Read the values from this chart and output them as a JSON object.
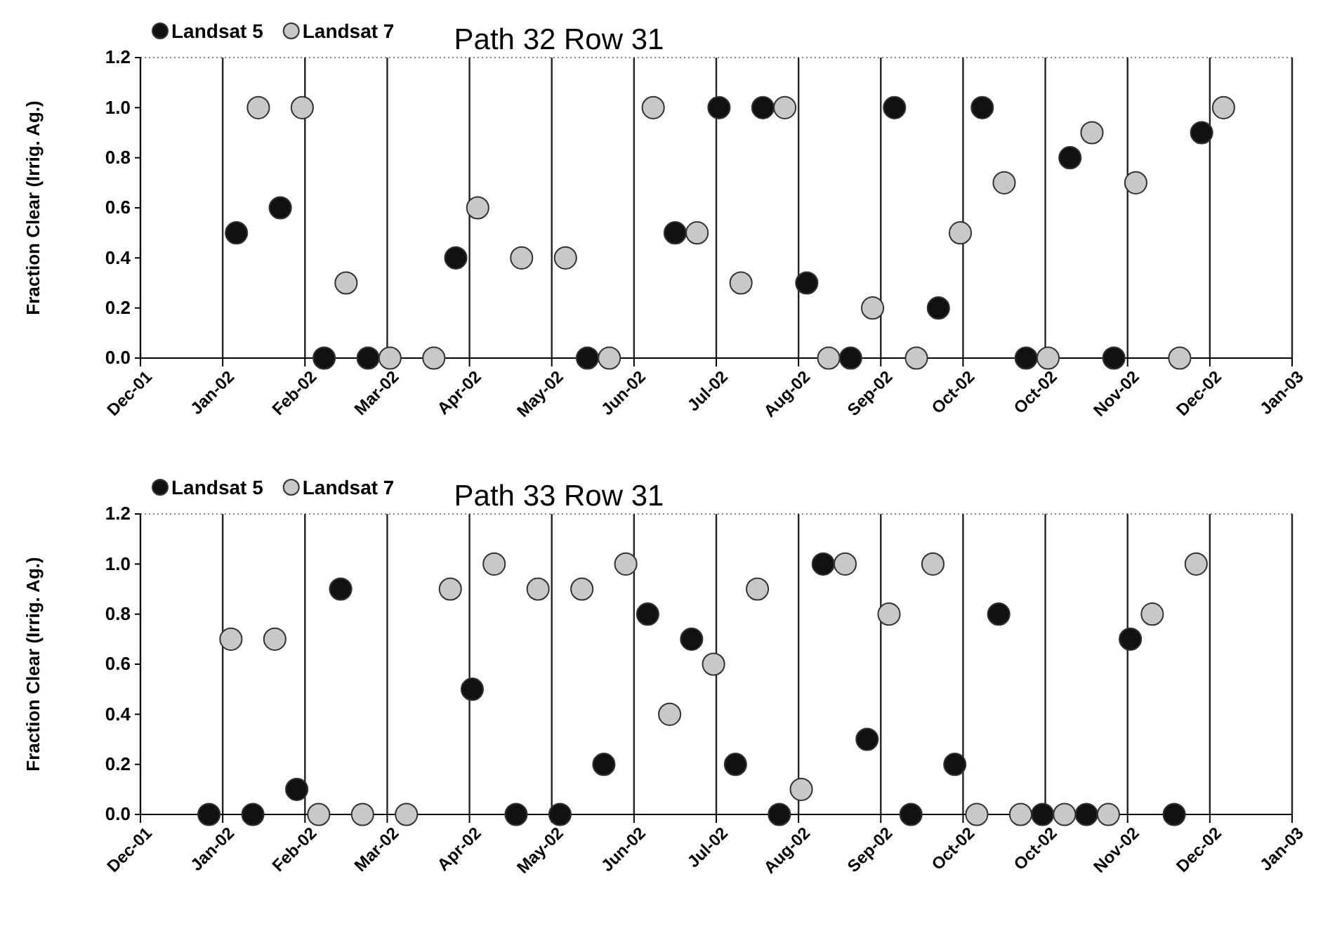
{
  "chart_data": [
    {
      "type": "scatter",
      "title": "Path 32 Row 31",
      "ylabel": "Fraction Clear (Irrig. Ag.)",
      "xlim": [
        "2001-12-05",
        "2003-01-29"
      ],
      "xticks": [
        {
          "value": "2001-12-05",
          "label": "Dec-01"
        },
        {
          "value": "2002-01-04",
          "label": "Jan-02"
        },
        {
          "value": "2002-02-03",
          "label": "Feb-02"
        },
        {
          "value": "2002-03-05",
          "label": "Mar-02"
        },
        {
          "value": "2002-04-04",
          "label": "Apr-02"
        },
        {
          "value": "2002-05-04",
          "label": "May-02"
        },
        {
          "value": "2002-06-03",
          "label": "Jun-02"
        },
        {
          "value": "2002-07-03",
          "label": "Jul-02"
        },
        {
          "value": "2002-08-02",
          "label": "Aug-02"
        },
        {
          "value": "2002-09-01",
          "label": "Sep-02"
        },
        {
          "value": "2002-10-01",
          "label": "Oct-02"
        },
        {
          "value": "2002-10-31",
          "label": "Oct-02"
        },
        {
          "value": "2002-11-30",
          "label": "Nov-02"
        },
        {
          "value": "2002-12-30",
          "label": "Dec-02"
        },
        {
          "value": "2003-01-29",
          "label": "Jan-03"
        }
      ],
      "ylim": [
        0,
        1.2
      ],
      "yticks": [
        {
          "value": 0,
          "label": "0.0"
        },
        {
          "value": 0.2,
          "label": "0.2"
        },
        {
          "value": 0.4,
          "label": "0.4"
        },
        {
          "value": 0.6,
          "label": "0.6"
        },
        {
          "value": 0.8,
          "label": "0.8"
        },
        {
          "value": 1,
          "label": "1.0"
        },
        {
          "value": 1.2,
          "label": "1.2"
        }
      ],
      "grid": "x",
      "legend": "top left",
      "marker": "circle",
      "series": [
        {
          "name": "Landsat 5",
          "color": "#111111",
          "x": [
            "2002-01-09",
            "2002-01-25",
            "2002-02-10",
            "2002-02-26",
            "2002-03-30",
            "2002-05-17",
            "2002-06-18",
            "2002-07-04",
            "2002-07-20",
            "2002-08-05",
            "2002-08-21",
            "2002-09-06",
            "2002-09-22",
            "2002-10-08",
            "2002-10-24",
            "2002-11-09",
            "2002-11-25",
            "2002-12-27"
          ],
          "values": [
            0.5,
            0.6,
            0,
            0,
            0.4,
            0,
            0.5,
            1,
            1,
            0.3,
            0,
            1,
            0.2,
            1,
            0,
            0.8,
            0,
            0.9
          ]
        },
        {
          "name": "Landsat 7",
          "color": "#c8c8c8",
          "x": [
            "2002-01-17",
            "2002-02-02",
            "2002-02-18",
            "2002-03-06",
            "2002-03-22",
            "2002-04-07",
            "2002-04-23",
            "2002-05-09",
            "2002-05-25",
            "2002-06-10",
            "2002-06-26",
            "2002-07-12",
            "2002-07-28",
            "2002-08-13",
            "2002-08-29",
            "2002-09-14",
            "2002-09-30",
            "2002-10-16",
            "2002-11-01",
            "2002-11-17",
            "2002-12-03",
            "2002-12-19",
            "2003-01-04"
          ],
          "values": [
            1,
            1,
            0.3,
            0,
            0,
            0.6,
            0.4,
            0.4,
            0,
            1,
            0.5,
            0.3,
            1,
            0,
            0.2,
            0,
            0.5,
            0.7,
            0,
            0.9,
            0.7,
            0,
            1
          ]
        }
      ]
    },
    {
      "type": "scatter",
      "title": "Path 33 Row 31",
      "ylabel": "Fraction Clear (Irrig. Ag.)",
      "xlim": [
        "2001-12-05",
        "2003-01-29"
      ],
      "xticks": [
        {
          "value": "2001-12-05",
          "label": "Dec-01"
        },
        {
          "value": "2002-01-04",
          "label": "Jan-02"
        },
        {
          "value": "2002-02-03",
          "label": "Feb-02"
        },
        {
          "value": "2002-03-05",
          "label": "Mar-02"
        },
        {
          "value": "2002-04-04",
          "label": "Apr-02"
        },
        {
          "value": "2002-05-04",
          "label": "May-02"
        },
        {
          "value": "2002-06-03",
          "label": "Jun-02"
        },
        {
          "value": "2002-07-03",
          "label": "Jul-02"
        },
        {
          "value": "2002-08-02",
          "label": "Aug-02"
        },
        {
          "value": "2002-09-01",
          "label": "Sep-02"
        },
        {
          "value": "2002-10-01",
          "label": "Oct-02"
        },
        {
          "value": "2002-10-31",
          "label": "Oct-02"
        },
        {
          "value": "2002-11-30",
          "label": "Nov-02"
        },
        {
          "value": "2002-12-30",
          "label": "Dec-02"
        },
        {
          "value": "2003-01-29",
          "label": "Jan-03"
        }
      ],
      "ylim": [
        0,
        1.2
      ],
      "yticks": [
        {
          "value": 0,
          "label": "0.0"
        },
        {
          "value": 0.2,
          "label": "0.2"
        },
        {
          "value": 0.4,
          "label": "0.4"
        },
        {
          "value": 0.6,
          "label": "0.6"
        },
        {
          "value": 0.8,
          "label": "0.8"
        },
        {
          "value": 1,
          "label": "1.0"
        },
        {
          "value": 1.2,
          "label": "1.2"
        }
      ],
      "grid": "x",
      "legend": "top left",
      "marker": "circle",
      "series": [
        {
          "name": "Landsat 5",
          "color": "#111111",
          "x": [
            "2001-12-30",
            "2002-01-15",
            "2002-01-31",
            "2002-02-16",
            "2002-04-05",
            "2002-04-21",
            "2002-05-07",
            "2002-05-23",
            "2002-06-08",
            "2002-06-24",
            "2002-07-10",
            "2002-07-26",
            "2002-08-11",
            "2002-08-27",
            "2002-09-12",
            "2002-09-28",
            "2002-10-14",
            "2002-10-30",
            "2002-11-15",
            "2002-12-01",
            "2002-12-17"
          ],
          "values": [
            0,
            0,
            0.1,
            0.9,
            0.5,
            0,
            0,
            0.2,
            0.8,
            0.7,
            0.2,
            0,
            1,
            0.3,
            0,
            0.2,
            0.8,
            0,
            0,
            0.7,
            0
          ]
        },
        {
          "name": "Landsat 7",
          "color": "#c8c8c8",
          "x": [
            "2002-01-07",
            "2002-01-23",
            "2002-02-08",
            "2002-02-24",
            "2002-03-12",
            "2002-03-28",
            "2002-04-13",
            "2002-04-29",
            "2002-05-15",
            "2002-05-31",
            "2002-06-16",
            "2002-07-02",
            "2002-07-18",
            "2002-08-03",
            "2002-08-19",
            "2002-09-04",
            "2002-09-20",
            "2002-10-06",
            "2002-10-22",
            "2002-11-07",
            "2002-11-23",
            "2002-12-09",
            "2002-12-25"
          ],
          "values": [
            0.7,
            0.7,
            0,
            0,
            0,
            0.9,
            1,
            0.9,
            0.9,
            1,
            0.4,
            0.6,
            0.9,
            0.1,
            1,
            0.8,
            1,
            0,
            0,
            0,
            0,
            0.8,
            1
          ]
        }
      ]
    }
  ]
}
